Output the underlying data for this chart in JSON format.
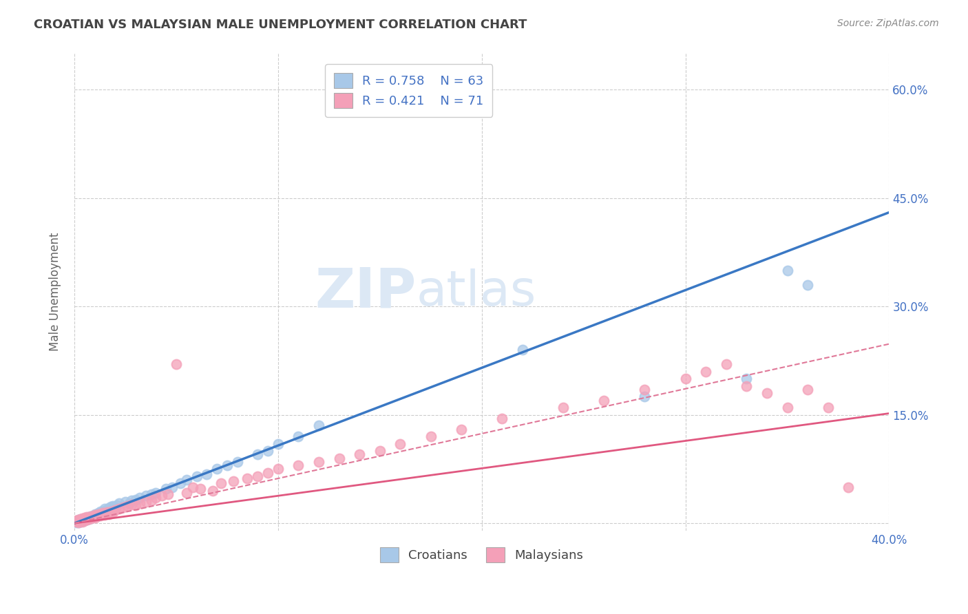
{
  "title": "CROATIAN VS MALAYSIAN MALE UNEMPLOYMENT CORRELATION CHART",
  "source_text": "Source: ZipAtlas.com",
  "ylabel": "Male Unemployment",
  "xmin": 0.0,
  "xmax": 0.4,
  "ymin": -0.01,
  "ymax": 0.65,
  "yticks": [
    0.0,
    0.15,
    0.3,
    0.45,
    0.6
  ],
  "xticks": [
    0.0,
    0.1,
    0.2,
    0.3,
    0.4
  ],
  "xtick_labels": [
    "0.0%",
    "",
    "",
    "",
    "40.0%"
  ],
  "ytick_labels_right": [
    "",
    "15.0%",
    "30.0%",
    "45.0%",
    "60.0%"
  ],
  "croatian_R": 0.758,
  "croatian_N": 63,
  "malaysian_R": 0.421,
  "malaysian_N": 71,
  "blue_scatter_color": "#a8c8e8",
  "pink_scatter_color": "#f4a0b8",
  "blue_line_color": "#3a78c4",
  "pink_line_color": "#e05880",
  "pink_dash_color": "#e07898",
  "title_color": "#444444",
  "axis_tick_color": "#4472c4",
  "watermark_color": "#dce8f5",
  "background_color": "#ffffff",
  "grid_color": "#cccccc",
  "legend_R_color": "#4472c4",
  "source_color": "#888888",
  "ylabel_color": "#666666",
  "bottom_legend_color": "#444444",
  "blue_line_slope": 1.075,
  "blue_line_intercept": 0.0,
  "pink_line_slope": 0.38,
  "pink_line_intercept": 0.0,
  "pink_dash_slope": 0.62,
  "pink_dash_intercept": 0.0,
  "croatian_points_x": [
    0.001,
    0.001,
    0.001,
    0.002,
    0.002,
    0.002,
    0.003,
    0.003,
    0.003,
    0.004,
    0.004,
    0.005,
    0.005,
    0.006,
    0.006,
    0.007,
    0.007,
    0.008,
    0.008,
    0.009,
    0.01,
    0.01,
    0.011,
    0.012,
    0.012,
    0.013,
    0.014,
    0.015,
    0.015,
    0.016,
    0.017,
    0.018,
    0.019,
    0.02,
    0.021,
    0.022,
    0.025,
    0.027,
    0.028,
    0.03,
    0.032,
    0.035,
    0.038,
    0.04,
    0.045,
    0.048,
    0.052,
    0.055,
    0.06,
    0.065,
    0.07,
    0.075,
    0.08,
    0.09,
    0.095,
    0.1,
    0.11,
    0.12,
    0.22,
    0.28,
    0.33,
    0.35,
    0.36
  ],
  "croatian_points_y": [
    0.001,
    0.002,
    0.003,
    0.001,
    0.003,
    0.005,
    0.002,
    0.004,
    0.006,
    0.003,
    0.005,
    0.004,
    0.007,
    0.005,
    0.008,
    0.006,
    0.009,
    0.007,
    0.01,
    0.009,
    0.01,
    0.013,
    0.012,
    0.014,
    0.011,
    0.016,
    0.015,
    0.017,
    0.02,
    0.018,
    0.021,
    0.023,
    0.024,
    0.022,
    0.025,
    0.028,
    0.03,
    0.028,
    0.032,
    0.033,
    0.035,
    0.038,
    0.04,
    0.042,
    0.048,
    0.05,
    0.055,
    0.06,
    0.065,
    0.068,
    0.075,
    0.08,
    0.085,
    0.095,
    0.1,
    0.11,
    0.12,
    0.135,
    0.24,
    0.175,
    0.2,
    0.35,
    0.33
  ],
  "malaysian_points_x": [
    0.001,
    0.001,
    0.002,
    0.002,
    0.003,
    0.003,
    0.004,
    0.004,
    0.005,
    0.005,
    0.006,
    0.006,
    0.007,
    0.008,
    0.008,
    0.009,
    0.01,
    0.01,
    0.011,
    0.012,
    0.013,
    0.014,
    0.015,
    0.016,
    0.017,
    0.018,
    0.019,
    0.02,
    0.022,
    0.024,
    0.026,
    0.028,
    0.03,
    0.032,
    0.035,
    0.038,
    0.04,
    0.043,
    0.046,
    0.05,
    0.055,
    0.058,
    0.062,
    0.068,
    0.072,
    0.078,
    0.085,
    0.09,
    0.095,
    0.1,
    0.11,
    0.12,
    0.13,
    0.14,
    0.15,
    0.16,
    0.175,
    0.19,
    0.21,
    0.24,
    0.26,
    0.28,
    0.3,
    0.31,
    0.32,
    0.33,
    0.34,
    0.35,
    0.36,
    0.37,
    0.38
  ],
  "malaysian_points_y": [
    0.002,
    0.004,
    0.001,
    0.005,
    0.003,
    0.006,
    0.002,
    0.007,
    0.004,
    0.008,
    0.005,
    0.009,
    0.006,
    0.007,
    0.01,
    0.009,
    0.008,
    0.012,
    0.01,
    0.013,
    0.011,
    0.014,
    0.012,
    0.015,
    0.013,
    0.016,
    0.015,
    0.018,
    0.02,
    0.022,
    0.024,
    0.026,
    0.025,
    0.028,
    0.03,
    0.032,
    0.035,
    0.038,
    0.04,
    0.22,
    0.042,
    0.05,
    0.048,
    0.045,
    0.055,
    0.058,
    0.062,
    0.065,
    0.07,
    0.075,
    0.08,
    0.085,
    0.09,
    0.095,
    0.1,
    0.11,
    0.12,
    0.13,
    0.145,
    0.16,
    0.17,
    0.185,
    0.2,
    0.21,
    0.22,
    0.19,
    0.18,
    0.16,
    0.185,
    0.16,
    0.05
  ]
}
